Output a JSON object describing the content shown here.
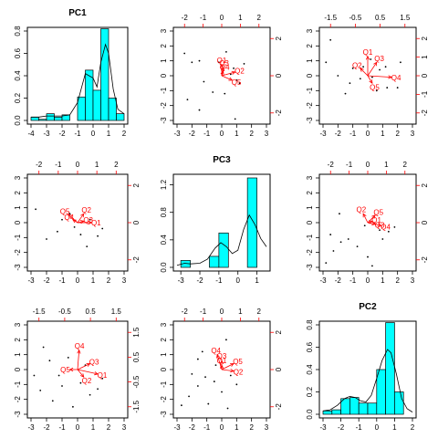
{
  "chart_data": {
    "type": "scatter",
    "layout": "3x3 pairs plot (biplot matrix)",
    "colors": {
      "bar_fill": "#00ffff",
      "arrow": "#ff0000",
      "frame": "#000000",
      "points": "#000000"
    },
    "variables": [
      "PC1",
      "PC3",
      "PC2"
    ],
    "panels": [
      {
        "id": "p11",
        "kind": "hist",
        "title": "PC1",
        "xlim": [
          -4,
          2
        ],
        "ylim": [
          0,
          0.8
        ],
        "xticks": [
          "-4",
          "-3",
          "-2",
          "-1",
          "0",
          "1",
          "2"
        ],
        "yticks": [
          "0.0",
          "0.2",
          "0.4",
          "0.6",
          "0.8"
        ],
        "bins": [
          [
            -4,
            -3.5,
            0.03
          ],
          [
            -3.5,
            -3,
            0.01
          ],
          [
            -3,
            -2.5,
            0.06
          ],
          [
            -2.5,
            -2,
            0.03
          ],
          [
            -2,
            -1.5,
            0.05
          ],
          [
            -1.5,
            -1,
            0.0
          ],
          [
            -1,
            -0.5,
            0.21
          ],
          [
            -0.5,
            0,
            0.45
          ],
          [
            0,
            0.5,
            0.27
          ],
          [
            0.5,
            1,
            0.82
          ],
          [
            1,
            1.5,
            0.2
          ],
          [
            1.5,
            2,
            0.06
          ]
        ],
        "density": [
          [
            -4,
            0.03
          ],
          [
            -3.5,
            0.03
          ],
          [
            -3,
            0.04
          ],
          [
            -2.5,
            0.04
          ],
          [
            -2,
            0.04
          ],
          [
            -1.5,
            0.05
          ],
          [
            -1,
            0.16
          ],
          [
            -0.5,
            0.42
          ],
          [
            0,
            0.38
          ],
          [
            0.25,
            0.3
          ],
          [
            0.5,
            0.52
          ],
          [
            0.8,
            0.68
          ],
          [
            1,
            0.6
          ],
          [
            1.3,
            0.28
          ],
          [
            1.6,
            0.1
          ],
          [
            2,
            0.06
          ]
        ]
      },
      {
        "id": "p12",
        "kind": "biplot",
        "xlim": [
          -3,
          3
        ],
        "ylim": [
          -3,
          3
        ],
        "xticks": [
          "-3",
          "-2",
          "-1",
          "0",
          "1",
          "2",
          "3"
        ],
        "yticks": [
          "-3",
          "-2",
          "-1",
          "0",
          "1",
          "2",
          "3"
        ],
        "top_ticks": [
          "-2",
          "-1",
          "0",
          "1",
          "2"
        ],
        "right_ticks": [
          "-2",
          "0",
          "2"
        ],
        "loadings": [
          {
            "label": "Q1",
            "x": 0.0,
            "y": 0.75
          },
          {
            "label": "Q3",
            "x": 0.1,
            "y": 0.55
          },
          {
            "label": "Q4",
            "x": 0.1,
            "y": 0.3
          },
          {
            "label": "Q2",
            "x": 0.9,
            "y": 0.25
          },
          {
            "label": "Q5",
            "x": 0.7,
            "y": -0.3
          }
        ],
        "points": [
          [
            -2.5,
            1.5
          ],
          [
            -2.0,
            0.9
          ],
          [
            -1.2,
            -0.4
          ],
          [
            -1.5,
            1.0
          ],
          [
            -0.6,
            -1.1
          ],
          [
            0.8,
            0.5
          ],
          [
            1.2,
            -0.5
          ],
          [
            1.0,
            -0.3
          ],
          [
            0.3,
            1.6
          ],
          [
            -2.3,
            -1.6
          ],
          [
            -1.5,
            -2.3
          ],
          [
            0.9,
            -2.9
          ],
          [
            0.2,
            -1.2
          ],
          [
            0.6,
            0.1
          ],
          [
            1.5,
            0.8
          ],
          [
            -0.2,
            0.9
          ]
        ]
      },
      {
        "id": "p13",
        "kind": "biplot",
        "xlim": [
          -3,
          3
        ],
        "ylim": [
          -3,
          3
        ],
        "xticks": [
          "-3",
          "-2",
          "-1",
          "0",
          "1",
          "2",
          "3"
        ],
        "yticks": [
          "-3",
          "-2",
          "-1",
          "0",
          "1",
          "2",
          "3"
        ],
        "top_ticks": [
          "-1.5",
          "-0.5",
          "0.5",
          "1.5"
        ],
        "right_ticks": [
          "-2",
          "-1",
          "0",
          "1",
          "2"
        ],
        "loadings": [
          {
            "label": "Q1",
            "x": 0.0,
            "y": 1.3
          },
          {
            "label": "Q3",
            "x": 0.6,
            "y": 0.9
          },
          {
            "label": "Q2",
            "x": -0.5,
            "y": 0.5
          },
          {
            "label": "Q4",
            "x": 1.6,
            "y": -0.1
          },
          {
            "label": "Q5",
            "x": 0.3,
            "y": -0.5
          }
        ],
        "points": [
          [
            -2.8,
            0.9
          ],
          [
            -2.0,
            0.0
          ],
          [
            -1.2,
            -0.5
          ],
          [
            -0.5,
            -0.2
          ],
          [
            0.3,
            -0.1
          ],
          [
            0.8,
            0.4
          ],
          [
            1.3,
            -0.8
          ],
          [
            2.0,
            -0.8
          ],
          [
            -2.5,
            2.4
          ],
          [
            -1.0,
            0.5
          ],
          [
            0.2,
            1.1
          ],
          [
            -1.5,
            -1.2
          ],
          [
            0.6,
            -1.0
          ],
          [
            1.2,
            0.6
          ],
          [
            -0.3,
            0.6
          ],
          [
            2.2,
            0.9
          ]
        ]
      },
      {
        "id": "p21",
        "kind": "biplot",
        "xlim": [
          -3,
          3
        ],
        "ylim": [
          -3,
          3
        ],
        "xticks": [
          "-3",
          "-2",
          "-1",
          "0",
          "1",
          "2",
          "3"
        ],
        "yticks": [
          "-3",
          "-2",
          "-1",
          "0",
          "1",
          "2",
          "3"
        ],
        "top_ticks": [
          "-2",
          "-1",
          "0",
          "1",
          "2"
        ],
        "right_ticks": [
          "-2",
          "0",
          "2"
        ],
        "loadings": [
          {
            "label": "Q5",
            "x": -0.6,
            "y": 0.55
          },
          {
            "label": "Q2",
            "x": 0.4,
            "y": 0.6
          },
          {
            "label": "Q4",
            "x": -0.3,
            "y": 0.2
          },
          {
            "label": "Q3",
            "x": 0.4,
            "y": 0.1
          },
          {
            "label": "Q1",
            "x": 0.9,
            "y": 0.0
          }
        ],
        "points": [
          [
            -2.7,
            0.9
          ],
          [
            -2.0,
            -1.1
          ],
          [
            -1.3,
            -0.6
          ],
          [
            -0.5,
            0.6
          ],
          [
            0.2,
            -0.8
          ],
          [
            0.8,
            0.2
          ],
          [
            1.3,
            -0.9
          ],
          [
            -0.2,
            -0.3
          ],
          [
            0.6,
            -1.6
          ],
          [
            -1.0,
            0.2
          ],
          [
            1.6,
            -0.4
          ]
        ]
      },
      {
        "id": "p22",
        "kind": "hist",
        "title": "PC3",
        "xlim": [
          -3.2,
          1.5
        ],
        "ylim": [
          0,
          1.3
        ],
        "xticks": [
          "-3",
          "-2",
          "-1",
          "0",
          "1"
        ],
        "yticks": [
          "0.0",
          "0.4",
          "0.8",
          "1.2"
        ],
        "bins": [
          [
            -3,
            -2.5,
            0.1
          ],
          [
            -2.5,
            -2,
            0.0
          ],
          [
            -2,
            -1.5,
            0.0
          ],
          [
            -1.5,
            -1,
            0.16
          ],
          [
            -1,
            -0.5,
            0.5
          ],
          [
            -0.5,
            0,
            0.0
          ],
          [
            0,
            0.5,
            0.0
          ],
          [
            0.5,
            1,
            1.3
          ]
        ],
        "density": [
          [
            -3.2,
            0.03
          ],
          [
            -2.8,
            0.06
          ],
          [
            -2.5,
            0.05
          ],
          [
            -2.0,
            0.06
          ],
          [
            -1.6,
            0.12
          ],
          [
            -1.2,
            0.28
          ],
          [
            -0.9,
            0.36
          ],
          [
            -0.6,
            0.3
          ],
          [
            -0.3,
            0.2
          ],
          [
            0.0,
            0.25
          ],
          [
            0.3,
            0.55
          ],
          [
            0.6,
            0.76
          ],
          [
            0.9,
            0.62
          ],
          [
            1.2,
            0.42
          ],
          [
            1.5,
            0.3
          ]
        ]
      },
      {
        "id": "p23",
        "kind": "biplot",
        "xlim": [
          -3,
          3
        ],
        "ylim": [
          -3,
          3
        ],
        "xticks": [
          "-3",
          "-2",
          "-1",
          "0",
          "1",
          "2",
          "3"
        ],
        "yticks": [
          "-3",
          "-2",
          "-1",
          "0",
          "1",
          "2",
          "3"
        ],
        "top_ticks": [
          "-2",
          "-1",
          "0",
          "1",
          "2"
        ],
        "right_ticks": [
          "-2",
          "0",
          "2"
        ],
        "loadings": [
          {
            "label": "Q2",
            "x": -0.3,
            "y": 0.6
          },
          {
            "label": "Q5",
            "x": 0.5,
            "y": 0.5
          },
          {
            "label": "Q1",
            "x": 0.3,
            "y": 0.1
          },
          {
            "label": "Q3",
            "x": 0.5,
            "y": -0.1
          },
          {
            "label": "Q4",
            "x": 0.9,
            "y": -0.2
          }
        ],
        "points": [
          [
            -2.8,
            -2.7
          ],
          [
            -2.3,
            -1.9
          ],
          [
            -1.8,
            -1.3
          ],
          [
            -1.3,
            -1.1
          ],
          [
            -0.7,
            -1.6
          ],
          [
            0.0,
            -2.3
          ],
          [
            -0.2,
            -0.2
          ],
          [
            0.8,
            -0.5
          ],
          [
            1.4,
            -0.6
          ],
          [
            1.8,
            -0.3
          ],
          [
            -1.9,
            0.6
          ],
          [
            -2.5,
            -0.8
          ],
          [
            0.3,
            -2.9
          ],
          [
            1.0,
            -1.1
          ]
        ]
      },
      {
        "id": "p31",
        "kind": "biplot",
        "xlim": [
          -3,
          3
        ],
        "ylim": [
          -3,
          3
        ],
        "xticks": [
          "-3",
          "-2",
          "-1",
          "0",
          "1",
          "2",
          "3"
        ],
        "yticks": [
          "-3",
          "-2",
          "-1",
          "0",
          "1",
          "2",
          "3"
        ],
        "top_ticks": [
          "-1.5",
          "-0.5",
          "0.5",
          "1.5"
        ],
        "right_ticks": [
          "-1.5",
          "-0.5",
          "0.5",
          "1.5"
        ],
        "loadings": [
          {
            "label": "Q4",
            "x": 0.1,
            "y": 1.3
          },
          {
            "label": "Q3",
            "x": 0.8,
            "y": 0.4
          },
          {
            "label": "Q5",
            "x": -0.5,
            "y": 0.0
          },
          {
            "label": "Q2",
            "x": 0.4,
            "y": -0.5
          },
          {
            "label": "Q1",
            "x": 1.3,
            "y": -0.3
          }
        ],
        "points": [
          [
            -2.8,
            -0.4
          ],
          [
            -2.2,
            1.5
          ],
          [
            -1.8,
            0.6
          ],
          [
            -1.2,
            -0.4
          ],
          [
            -0.6,
            0.8
          ],
          [
            0.2,
            -0.9
          ],
          [
            0.8,
            -1.7
          ],
          [
            1.3,
            -1.3
          ],
          [
            -2.4,
            -1.4
          ],
          [
            -1.6,
            -2.1
          ],
          [
            -0.3,
            -2.5
          ],
          [
            1.6,
            -0.6
          ],
          [
            -1.0,
            -1.1
          ],
          [
            0.5,
            0.3
          ]
        ]
      },
      {
        "id": "p32",
        "kind": "biplot",
        "xlim": [
          -3,
          3
        ],
        "ylim": [
          -3,
          3
        ],
        "xticks": [
          "-3",
          "-2",
          "-1",
          "0",
          "1",
          "2",
          "3"
        ],
        "yticks": [
          "-3",
          "-2",
          "-1",
          "0",
          "1",
          "2",
          "3"
        ],
        "top_ticks": [
          "-2",
          "-1",
          "0",
          "1",
          "2"
        ],
        "right_ticks": [
          "-2",
          "0",
          "2"
        ],
        "loadings": [
          {
            "label": "Q4",
            "x": -0.3,
            "y": 1.0
          },
          {
            "label": "Q3",
            "x": 0.0,
            "y": 0.6
          },
          {
            "label": "Q1",
            "x": 0.0,
            "y": 0.3
          },
          {
            "label": "Q5",
            "x": 0.8,
            "y": 0.4
          },
          {
            "label": "Q2",
            "x": 0.8,
            "y": -0.1
          }
        ],
        "points": [
          [
            -2.7,
            -2.4
          ],
          [
            -2.2,
            -1.8
          ],
          [
            -1.6,
            -1.1
          ],
          [
            -1.1,
            -0.5
          ],
          [
            -0.5,
            -0.8
          ],
          [
            0.0,
            -1.5
          ],
          [
            0.6,
            -0.4
          ],
          [
            -0.4,
            0.3
          ],
          [
            -1.3,
            1.2
          ],
          [
            -2.0,
            -0.3
          ],
          [
            -0.9,
            -2.3
          ],
          [
            1.0,
            -1.0
          ],
          [
            0.3,
            2.0
          ],
          [
            -1.6,
            0.7
          ],
          [
            0.4,
            -2.6
          ]
        ]
      },
      {
        "id": "p33",
        "kind": "hist",
        "title": "PC2",
        "xlim": [
          -3,
          2
        ],
        "ylim": [
          0,
          0.8
        ],
        "xticks": [
          "-3",
          "-2",
          "-1",
          "0",
          "1",
          "2"
        ],
        "yticks": [
          "0.0",
          "0.2",
          "0.4",
          "0.6",
          "0.8"
        ],
        "bins": [
          [
            -3,
            -2.5,
            0.03
          ],
          [
            -2.5,
            -2,
            0.04
          ],
          [
            -2,
            -1.5,
            0.14
          ],
          [
            -1.5,
            -1,
            0.15
          ],
          [
            -1,
            -0.5,
            0.1
          ],
          [
            -0.5,
            0,
            0.1
          ],
          [
            0,
            0.5,
            0.4
          ],
          [
            0.5,
            1,
            0.82
          ],
          [
            1,
            1.5,
            0.2
          ]
        ],
        "density": [
          [
            -3,
            0.03
          ],
          [
            -2.6,
            0.04
          ],
          [
            -2.2,
            0.08
          ],
          [
            -1.8,
            0.14
          ],
          [
            -1.5,
            0.16
          ],
          [
            -1.2,
            0.15
          ],
          [
            -0.9,
            0.12
          ],
          [
            -0.6,
            0.11
          ],
          [
            -0.3,
            0.17
          ],
          [
            0.0,
            0.32
          ],
          [
            0.3,
            0.48
          ],
          [
            0.6,
            0.58
          ],
          [
            0.8,
            0.55
          ],
          [
            1.1,
            0.36
          ],
          [
            1.4,
            0.14
          ],
          [
            1.7,
            0.05
          ],
          [
            2.0,
            0.02
          ]
        ]
      }
    ]
  }
}
